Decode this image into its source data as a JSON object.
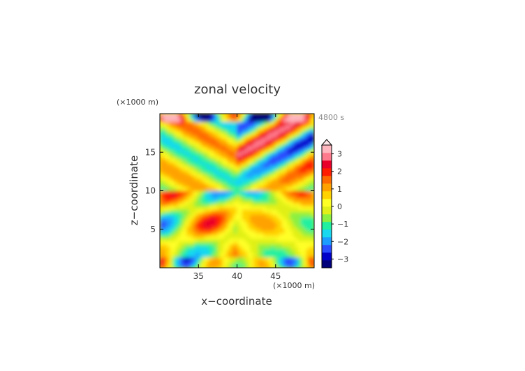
{
  "chart_data": {
    "type": "heatmap",
    "title": "zonal velocity",
    "xlabel": "x−coordinate",
    "ylabel": "z−coordinate",
    "x_unit": "(×1000 m)",
    "y_unit": "(×1000 m)",
    "time_label": "4800 s",
    "xlim": [
      30,
      50
    ],
    "ylim": [
      0,
      20
    ],
    "x_ticks": [
      35,
      40,
      45
    ],
    "y_ticks": [
      5,
      10,
      15
    ],
    "grid": false,
    "colorbar": {
      "ticks": [
        3,
        2,
        1,
        0,
        -1,
        -2,
        -3
      ],
      "range": [
        -3.5,
        3.5
      ],
      "extend": "max",
      "colors": [
        "#00007a",
        "#0000c8",
        "#2a4cff",
        "#1c9cff",
        "#18d8f0",
        "#20f0a0",
        "#8cf040",
        "#e0f018",
        "#ffff26",
        "#ffd200",
        "#ffa200",
        "#ff6a00",
        "#ff1c00",
        "#e8002a",
        "#ff7a8c",
        "#ffb6be"
      ]
    }
  }
}
